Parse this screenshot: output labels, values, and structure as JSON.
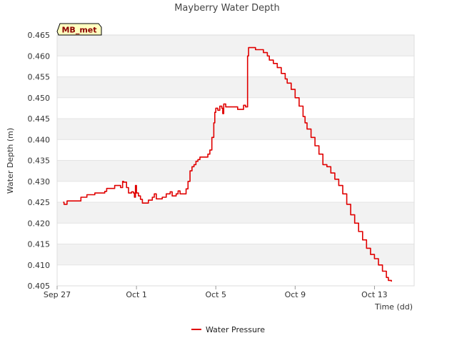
{
  "chart_data": {
    "type": "line",
    "title": "Mayberry Water Depth",
    "xlabel": "Time (dd)",
    "ylabel": "Water Depth (m)",
    "badge": "MB_met",
    "x_ticks": [
      "Sep 27",
      "Oct 1",
      "Oct 5",
      "Oct 9",
      "Oct 13"
    ],
    "x_tick_values": [
      0,
      4,
      8,
      12,
      16
    ],
    "xlim": [
      0,
      18
    ],
    "ylim": [
      0.405,
      0.465
    ],
    "y_ticks": [
      "0.405",
      "0.410",
      "0.415",
      "0.420",
      "0.425",
      "0.430",
      "0.435",
      "0.440",
      "0.445",
      "0.450",
      "0.455",
      "0.460",
      "0.465"
    ],
    "grid": "horizontal bands",
    "legend_position": "bottom-center",
    "series": [
      {
        "name": "Water Pressure",
        "color": "#e00000",
        "points": [
          [
            0.3,
            0.425
          ],
          [
            0.35,
            0.4245
          ],
          [
            0.5,
            0.4253
          ],
          [
            1.1,
            0.4253
          ],
          [
            1.2,
            0.4262
          ],
          [
            1.4,
            0.4262
          ],
          [
            1.5,
            0.4268
          ],
          [
            1.8,
            0.4268
          ],
          [
            1.9,
            0.4272
          ],
          [
            2.2,
            0.4272
          ],
          [
            2.4,
            0.4276
          ],
          [
            2.5,
            0.4283
          ],
          [
            2.8,
            0.4283
          ],
          [
            2.9,
            0.429
          ],
          [
            3.1,
            0.429
          ],
          [
            3.2,
            0.4285
          ],
          [
            3.3,
            0.43
          ],
          [
            3.35,
            0.4298
          ],
          [
            3.5,
            0.4285
          ],
          [
            3.6,
            0.4272
          ],
          [
            3.75,
            0.4275
          ],
          [
            3.85,
            0.4272
          ],
          [
            3.9,
            0.4262
          ],
          [
            3.95,
            0.429
          ],
          [
            4.0,
            0.4272
          ],
          [
            4.1,
            0.4265
          ],
          [
            4.2,
            0.4257
          ],
          [
            4.3,
            0.4248
          ],
          [
            4.5,
            0.4248
          ],
          [
            4.6,
            0.4255
          ],
          [
            4.8,
            0.4262
          ],
          [
            4.9,
            0.427
          ],
          [
            5.0,
            0.4258
          ],
          [
            5.3,
            0.4262
          ],
          [
            5.5,
            0.427
          ],
          [
            5.7,
            0.4275
          ],
          [
            5.8,
            0.4265
          ],
          [
            6.0,
            0.427
          ],
          [
            6.1,
            0.4277
          ],
          [
            6.2,
            0.427
          ],
          [
            6.4,
            0.427
          ],
          [
            6.5,
            0.4282
          ],
          [
            6.6,
            0.43
          ],
          [
            6.7,
            0.4325
          ],
          [
            6.8,
            0.4335
          ],
          [
            6.9,
            0.434
          ],
          [
            7.0,
            0.4348
          ],
          [
            7.1,
            0.4352
          ],
          [
            7.2,
            0.4358
          ],
          [
            7.5,
            0.4358
          ],
          [
            7.6,
            0.4365
          ],
          [
            7.7,
            0.4375
          ],
          [
            7.8,
            0.4405
          ],
          [
            7.9,
            0.444
          ],
          [
            7.95,
            0.4465
          ],
          [
            8.0,
            0.4475
          ],
          [
            8.1,
            0.447
          ],
          [
            8.2,
            0.448
          ],
          [
            8.3,
            0.4475
          ],
          [
            8.35,
            0.4462
          ],
          [
            8.4,
            0.4485
          ],
          [
            8.5,
            0.4478
          ],
          [
            9.0,
            0.4478
          ],
          [
            9.1,
            0.4472
          ],
          [
            9.3,
            0.4472
          ],
          [
            9.4,
            0.4482
          ],
          [
            9.5,
            0.4478
          ],
          [
            9.6,
            0.46
          ],
          [
            9.65,
            0.462
          ],
          [
            9.9,
            0.462
          ],
          [
            10.0,
            0.4615
          ],
          [
            10.3,
            0.4615
          ],
          [
            10.4,
            0.4608
          ],
          [
            10.6,
            0.46
          ],
          [
            10.7,
            0.459
          ],
          [
            10.9,
            0.4582
          ],
          [
            11.1,
            0.4572
          ],
          [
            11.3,
            0.4558
          ],
          [
            11.5,
            0.4545
          ],
          [
            11.6,
            0.4535
          ],
          [
            11.8,
            0.452
          ],
          [
            12.0,
            0.45
          ],
          [
            12.2,
            0.448
          ],
          [
            12.4,
            0.4455
          ],
          [
            12.5,
            0.444
          ],
          [
            12.6,
            0.4425
          ],
          [
            12.8,
            0.4405
          ],
          [
            13.0,
            0.4385
          ],
          [
            13.2,
            0.4365
          ],
          [
            13.4,
            0.434
          ],
          [
            13.6,
            0.4335
          ],
          [
            13.8,
            0.432
          ],
          [
            14.0,
            0.4305
          ],
          [
            14.2,
            0.429
          ],
          [
            14.4,
            0.427
          ],
          [
            14.6,
            0.4245
          ],
          [
            14.8,
            0.422
          ],
          [
            15.0,
            0.42
          ],
          [
            15.2,
            0.418
          ],
          [
            15.4,
            0.416
          ],
          [
            15.6,
            0.414
          ],
          [
            15.8,
            0.4125
          ],
          [
            16.0,
            0.4115
          ],
          [
            16.2,
            0.41
          ],
          [
            16.4,
            0.4085
          ],
          [
            16.6,
            0.407
          ],
          [
            16.7,
            0.4063
          ],
          [
            16.85,
            0.406
          ]
        ]
      }
    ]
  }
}
